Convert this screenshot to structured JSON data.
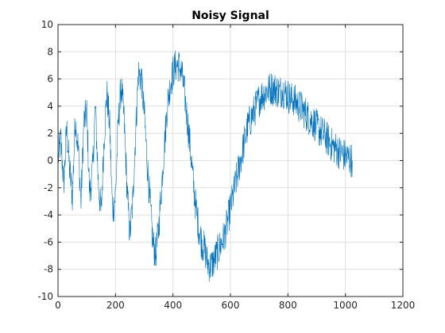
{
  "chart_data": {
    "type": "line",
    "title": "Noisy Signal",
    "xlabel": "",
    "ylabel": "",
    "xlim": [
      0,
      1200
    ],
    "ylim": [
      -10,
      10
    ],
    "xticks": [
      0,
      200,
      400,
      600,
      800,
      1000,
      1200
    ],
    "yticks": [
      -10,
      -8,
      -6,
      -4,
      -2,
      0,
      2,
      4,
      6,
      8,
      10
    ],
    "xtick_labels": [
      "0",
      "200",
      "400",
      "600",
      "800",
      "1000",
      "1200"
    ],
    "ytick_labels": [
      "-10",
      "-8",
      "-6",
      "-4",
      "-2",
      "0",
      "2",
      "4",
      "6",
      "8",
      "10"
    ],
    "grid": true,
    "series": [
      {
        "color": "#0072bd",
        "x": [
          1,
          10,
          20,
          30,
          40,
          50,
          60,
          70,
          80,
          90,
          100,
          110,
          120,
          130,
          140,
          150,
          160,
          170,
          180,
          190,
          200,
          210,
          220,
          230,
          240,
          250,
          260,
          270,
          280,
          290,
          300,
          310,
          320,
          330,
          340,
          350,
          360,
          370,
          380,
          390,
          400,
          410,
          420,
          430,
          440,
          450,
          460,
          470,
          480,
          490,
          500,
          510,
          520,
          530,
          540,
          550,
          560,
          570,
          580,
          590,
          600,
          610,
          620,
          630,
          640,
          650,
          660,
          670,
          680,
          690,
          700,
          710,
          720,
          730,
          740,
          750,
          760,
          770,
          780,
          790,
          800,
          810,
          820,
          830,
          840,
          850,
          860,
          870,
          880,
          890,
          900,
          910,
          920,
          930,
          940,
          950,
          960,
          970,
          980,
          990,
          1000,
          1010,
          1024
        ],
        "y": [
          0.2,
          1.5,
          -1.8,
          2.4,
          -0.6,
          -2.6,
          3.1,
          1.0,
          -3.0,
          2.8,
          3.5,
          -2.5,
          -0.8,
          4.0,
          -1.5,
          -4.0,
          1.5,
          5.0,
          2.5,
          -3.8,
          -2.5,
          3.0,
          5.5,
          3.0,
          -2.0,
          -5.5,
          -3.0,
          2.0,
          6.5,
          6.0,
          3.5,
          0.0,
          -3.0,
          -6.0,
          -7.0,
          -5.0,
          -2.0,
          1.0,
          4.0,
          5.5,
          6.5,
          7.0,
          7.0,
          6.5,
          5.0,
          3.0,
          1.0,
          -1.5,
          -3.5,
          -5.0,
          -6.0,
          -6.5,
          -7.5,
          -7.8,
          -7.5,
          -7.0,
          -6.5,
          -6.0,
          -5.5,
          -4.5,
          -3.5,
          -2.5,
          -1.5,
          -0.5,
          0.5,
          1.5,
          2.5,
          3.0,
          3.5,
          4.0,
          4.5,
          4.8,
          5.0,
          5.2,
          5.3,
          5.3,
          5.2,
          5.0,
          5.2,
          5.0,
          4.8,
          4.5,
          4.5,
          4.2,
          4.0,
          3.8,
          3.5,
          3.2,
          3.0,
          2.8,
          2.5,
          2.2,
          2.0,
          1.8,
          1.5,
          1.2,
          1.0,
          0.8,
          0.6,
          0.5,
          0.3,
          0.2,
          0.0
        ]
      }
    ]
  }
}
